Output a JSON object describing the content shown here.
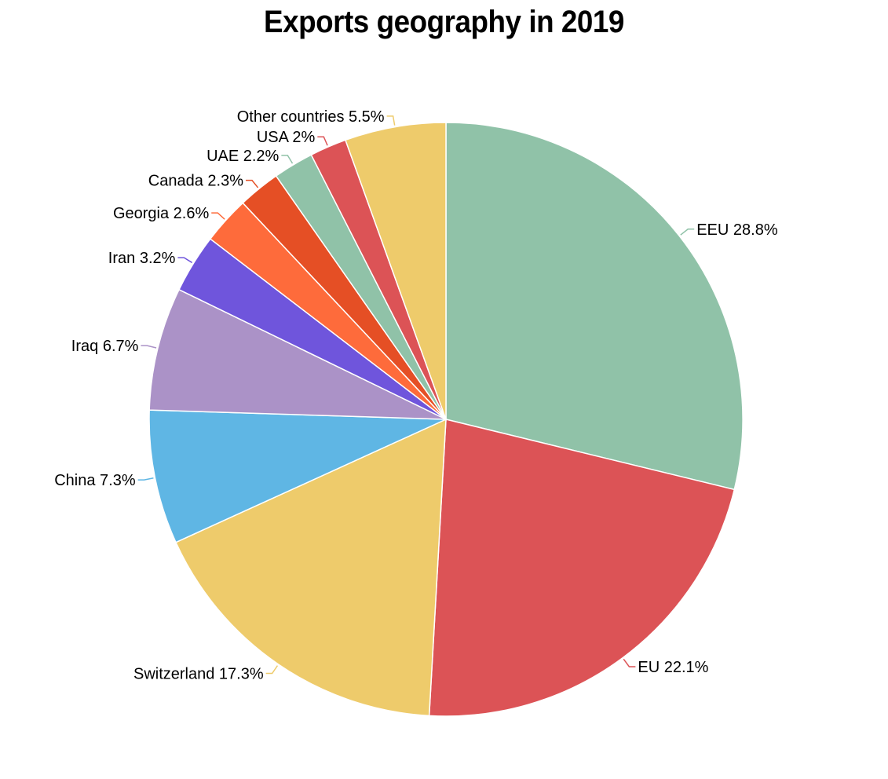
{
  "chart_data": {
    "type": "pie",
    "title": "Exports geography in 2019",
    "slices": [
      {
        "name": "EEU",
        "value": 28.8,
        "label": "EEU 28.8%",
        "color": "#90c2a8"
      },
      {
        "name": "EU",
        "value": 22.1,
        "label": "EU 22.1%",
        "color": "#dc5356"
      },
      {
        "name": "Switzerland",
        "value": 17.3,
        "label": "Switzerland 17.3%",
        "color": "#eecb6b"
      },
      {
        "name": "China",
        "value": 7.3,
        "label": "China 7.3%",
        "color": "#5fb6e4"
      },
      {
        "name": "Iraq",
        "value": 6.7,
        "label": "Iraq 6.7%",
        "color": "#ab92c7"
      },
      {
        "name": "Iran",
        "value": 3.2,
        "label": "Iran 3.2%",
        "color": "#6f55dc"
      },
      {
        "name": "Georgia",
        "value": 2.6,
        "label": "Georgia 2.6%",
        "color": "#fe6b3b"
      },
      {
        "name": "Canada",
        "value": 2.3,
        "label": "Canada 2.3%",
        "color": "#e54f25"
      },
      {
        "name": "UAE",
        "value": 2.2,
        "label": "UAE 2.2%",
        "color": "#90c2a8"
      },
      {
        "name": "USA",
        "value": 2.0,
        "label": "USA 2%",
        "color": "#dc5356"
      },
      {
        "name": "Other countries",
        "value": 5.5,
        "label": "Other countries 5.5%",
        "color": "#eecb6b"
      }
    ],
    "direction": "clockwise",
    "start": "top",
    "legend": "none"
  }
}
